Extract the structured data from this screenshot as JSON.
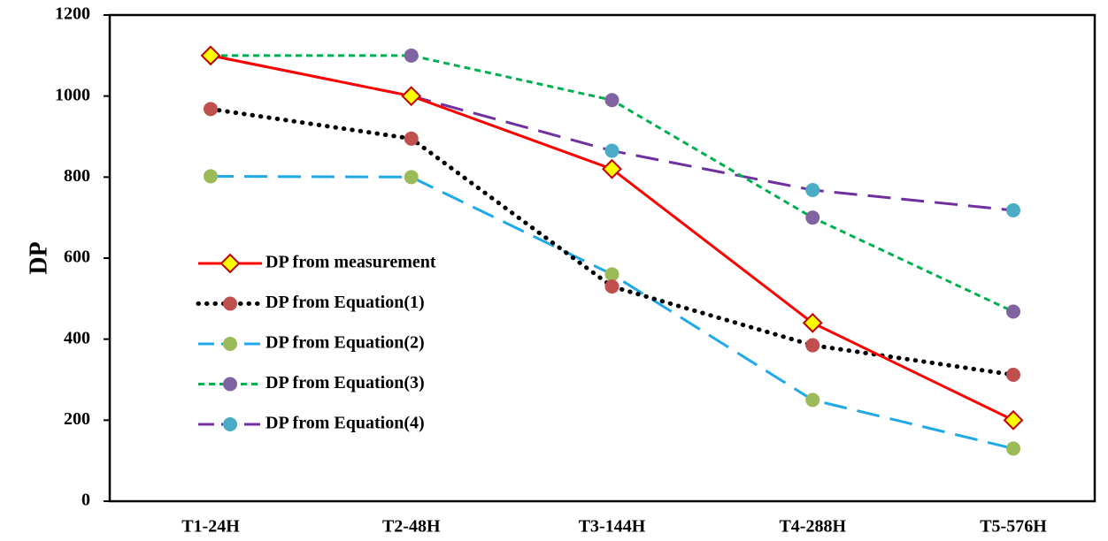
{
  "chart_data": {
    "type": "line",
    "title": "",
    "xlabel": "",
    "ylabel": "DP",
    "ylim": [
      0,
      1200
    ],
    "yticks": [
      0,
      200,
      400,
      600,
      800,
      1000,
      1200
    ],
    "grid": false,
    "legend_position": "center-left",
    "categories": [
      "T1-24H",
      "T2-48H",
      "T3-144H",
      "T4-288H",
      "T5-576H"
    ],
    "series": [
      {
        "name": "DP from measurement",
        "values": [
          1100,
          1000,
          820,
          440,
          200
        ],
        "line_color": "#ff0000",
        "line_style": "solid",
        "marker": "diamond",
        "marker_fill": "#ffff00",
        "marker_stroke": "#c00000"
      },
      {
        "name": "DP from Equation(1)",
        "values": [
          968,
          895,
          530,
          385,
          312
        ],
        "line_color": "#000000",
        "line_style": "dotted",
        "marker": "circle",
        "marker_fill": "#c0504d",
        "marker_stroke": "#c0504d"
      },
      {
        "name": "DP from Equation(2)",
        "values": [
          802,
          800,
          560,
          250,
          130
        ],
        "line_color": "#1fa9e8",
        "line_style": "long-dash",
        "marker": "circle",
        "marker_fill": "#9bbb59",
        "marker_stroke": "#9bbb59"
      },
      {
        "name": "DP from Equation(3)",
        "values": [
          1100,
          1100,
          990,
          700,
          468
        ],
        "line_color": "#00b050",
        "line_style": "short-dash",
        "marker": "circle",
        "marker_fill": "#8064a2",
        "marker_stroke": "#8064a2"
      },
      {
        "name": "DP from Equation(4)",
        "values": [
          1100,
          1000,
          865,
          768,
          718
        ],
        "line_color": "#7030a0",
        "line_style": "long-dash",
        "marker": "circle",
        "marker_fill": "#4bacc6",
        "marker_stroke": "#4bacc6"
      }
    ]
  }
}
